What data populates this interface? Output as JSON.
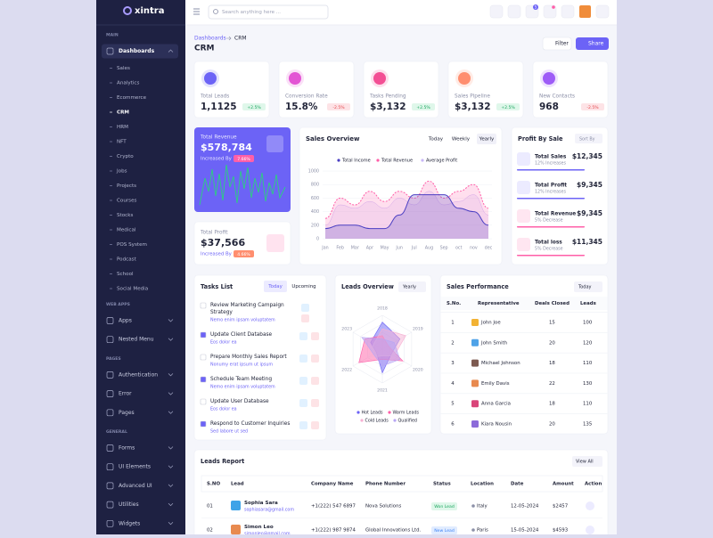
{
  "brand": "xintra",
  "search_placeholder": "Search anything here ...",
  "header_badge": "5",
  "sidebar": [
    {
      "title": "MAIN",
      "items": [
        {
          "label": "Dashboards",
          "children": [
            "Sales",
            "Analytics",
            "Ecommerce",
            "CRM",
            "HRM",
            "NFT",
            "Crypto",
            "Jobs",
            "Projects",
            "Courses",
            "Stocks",
            "Medical",
            "POS System",
            "Podcast",
            "School",
            "Social Media"
          ]
        }
      ]
    },
    {
      "title": "WEB APPS",
      "items": [
        {
          "label": "Apps"
        },
        {
          "label": "Nested Menu"
        }
      ]
    },
    {
      "title": "PAGES",
      "items": [
        {
          "label": "Authentication"
        },
        {
          "label": "Error"
        },
        {
          "label": "Pages"
        }
      ]
    },
    {
      "title": "GENERAL",
      "items": [
        {
          "label": "Forms"
        },
        {
          "label": "UI Elements"
        },
        {
          "label": "Advanced UI"
        },
        {
          "label": "Utilities"
        },
        {
          "label": "Widgets"
        }
      ]
    }
  ],
  "breadcrumb": [
    "Dashboards",
    "CRM"
  ],
  "page_title": "CRM",
  "buttons": [
    "Filter",
    "Share"
  ],
  "stats": [
    {
      "label": "Total Leads",
      "value": "1,1125",
      "change": "+2.5%"
    },
    {
      "label": "Conversion Rate",
      "value": "15.8%",
      "change": "-2.5%"
    },
    {
      "label": "Tasks Pending",
      "value": "$3,132",
      "change": "+2.5%"
    },
    {
      "label": "Sales Pipeline",
      "value": "$3,132",
      "change": "+2.5%"
    },
    {
      "label": "New Contacts",
      "value": "968",
      "change": "-2.5%"
    }
  ],
  "total_revenue": {
    "label": "Total Revenue",
    "value": "$578,784",
    "note": "Increased By",
    "badge": "7.66%"
  },
  "total_profit": {
    "label": "Total Profit",
    "value": "$37,566",
    "note": "Increased By",
    "badge": "4.66%"
  },
  "sales_overview": {
    "title": "Sales Overview",
    "tabs": [
      "Today",
      "Weekly",
      "Yearly"
    ],
    "chart": {
      "type": "area",
      "categories": [
        "Jan",
        "Feb",
        "Mar",
        "Apr",
        "May",
        "Jun",
        "Jul",
        "Aug",
        "Sep",
        "oct",
        "nov",
        "dec"
      ],
      "ylim": [
        0,
        1000
      ],
      "yticks": [
        0,
        200,
        400,
        600,
        800,
        1000
      ],
      "grid": true,
      "series": [
        {
          "name": "Total Income",
          "color": "#4b3fc2",
          "values": [
            150,
            200,
            200,
            150,
            150,
            350,
            650,
            650,
            650,
            450,
            400,
            200
          ]
        },
        {
          "name": "Total Revenue",
          "color": "#ff5fa8",
          "dashed": true,
          "values": [
            300,
            600,
            500,
            700,
            550,
            700,
            600,
            850,
            600,
            700,
            800,
            450
          ]
        },
        {
          "name": "Average Profit",
          "color": "#c9b8f7",
          "values": [
            200,
            500,
            450,
            550,
            450,
            600,
            500,
            700,
            500,
            550,
            650,
            350
          ]
        }
      ]
    }
  },
  "profit_by_sale": {
    "title": "Profit By Sale",
    "sort": "Sort By",
    "items": [
      {
        "label": "Total Sales",
        "value": "$12,345",
        "note": "12% Increases"
      },
      {
        "label": "Total Profit",
        "value": "$9,345",
        "note": "12% Increases"
      },
      {
        "label": "Total Revenue",
        "value": "$9,345",
        "note": "5% Decrease"
      },
      {
        "label": "Total loss",
        "value": "$11,345",
        "note": "5% Decrease"
      }
    ]
  },
  "tasks": {
    "title": "Tasks List",
    "tabs": [
      "Today",
      "Upcoming"
    ],
    "items": [
      {
        "title": "Review Marketing Campaign Strategy",
        "note": "Nemo enim ipsam voluptatem",
        "done": false
      },
      {
        "title": "Update Client Database",
        "note": "Eos dolor ea",
        "done": true
      },
      {
        "title": "Prepare Monthly Sales Report",
        "note": "Nonumy erat ipsum ut ipsum",
        "done": false
      },
      {
        "title": "Schedule Team Meeting",
        "note": "Nemo enim ipsam voluptatem",
        "done": true
      },
      {
        "title": "Update User Database",
        "note": "Eos dolor ea",
        "done": false
      },
      {
        "title": "Respond to Customer Inquiries",
        "note": "Sed labore ut sed",
        "done": true
      }
    ]
  },
  "leads_overview": {
    "title": "Leads Overview",
    "filter": "Yearly",
    "chart": {
      "type": "radar",
      "categories": [
        "2018",
        "2019",
        "2020",
        "2021",
        "2022",
        "2023"
      ],
      "rlim": [
        0,
        100
      ],
      "series": [
        {
          "name": "Hot Leads",
          "color": "#6c63f6",
          "values": [
            80,
            60,
            30,
            70,
            20,
            40
          ]
        },
        {
          "name": "Warm Leads",
          "color": "#ff5fa8",
          "values": [
            40,
            20,
            70,
            30,
            80,
            60
          ]
        },
        {
          "name": "Cold Leads",
          "color": "#f7b1d3",
          "values": [
            60,
            80,
            40,
            20,
            50,
            30
          ]
        },
        {
          "name": "Qualified",
          "color": "#b8a6f4",
          "values": [
            30,
            40,
            60,
            50,
            30,
            70
          ]
        }
      ]
    }
  },
  "sales_performance": {
    "title": "Sales Performance",
    "filter": "Today",
    "columns": [
      "S.No.",
      "Representative",
      "Deals Closed",
      "Leads"
    ],
    "rows": [
      [
        "1",
        "John Joe",
        15,
        100
      ],
      [
        "2",
        "John Smith",
        20,
        120
      ],
      [
        "3",
        "Michael Johnson",
        18,
        110
      ],
      [
        "4",
        "Emily Davis",
        22,
        130
      ],
      [
        "5",
        "Anna Garcia",
        18,
        110
      ],
      [
        "6",
        "Kiara Nousin",
        20,
        135
      ]
    ]
  },
  "leads_report": {
    "title": "Leads Report",
    "action": "View All",
    "columns": [
      "S.NO",
      "Lead",
      "Company Name",
      "Phone Number",
      "Status",
      "Location",
      "Date",
      "Amount",
      "Action"
    ],
    "rows": [
      {
        "sno": "01",
        "name": "Sophia Sara",
        "email": "sophiasara@gmail.com",
        "phone": "+1(222) 547 6897",
        "company": "Nova Solutions",
        "status": "Won Lead",
        "location": "Italy",
        "date": "12-05-2024",
        "amount": "$2457"
      },
      {
        "sno": "02",
        "name": "Simon Leo",
        "email": "simonleo@gmail.com",
        "phone": "+1(222) 987 9874",
        "company": "Global Innovations Ltd.",
        "status": "New Lead",
        "location": "Paris",
        "date": "15-05-2024",
        "amount": "$4593"
      }
    ]
  }
}
